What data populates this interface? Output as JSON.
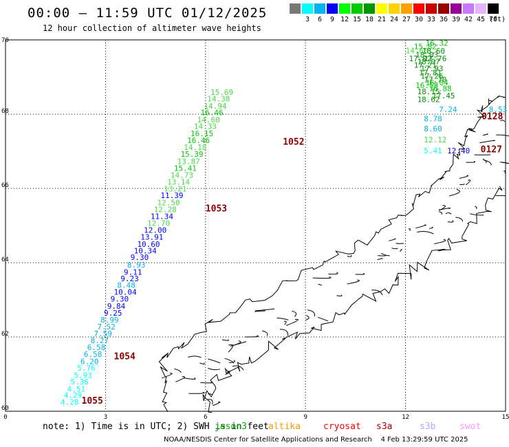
{
  "title": "00:00 – 11:59 UTC 01/12/2025",
  "subtitle": "12 hour collection of altimeter wave heights",
  "legend": {
    "unit": "(ft)",
    "bins": [
      {
        "label": "",
        "color": "#787878"
      },
      {
        "label": "3",
        "color": "#00ffff"
      },
      {
        "label": "6",
        "color": "#00b4f0"
      },
      {
        "label": "9",
        "color": "#0000ff"
      },
      {
        "label": "12",
        "color": "#00ff00"
      },
      {
        "label": "15",
        "color": "#00cc00"
      },
      {
        "label": "18",
        "color": "#009600"
      },
      {
        "label": "21",
        "color": "#ffff00"
      },
      {
        "label": "24",
        "color": "#ffd200"
      },
      {
        "label": "27",
        "color": "#ffa000"
      },
      {
        "label": "30",
        "color": "#ff0000"
      },
      {
        "label": "33",
        "color": "#c80000"
      },
      {
        "label": "36",
        "color": "#960000"
      },
      {
        "label": "39",
        "color": "#960096"
      },
      {
        "label": "42",
        "color": "#c878ff"
      },
      {
        "label": "45",
        "color": "#e6b4ff"
      },
      {
        "label": "70",
        "color": "#000000"
      }
    ]
  },
  "map": {
    "lon_range": [
      0,
      15
    ],
    "lat_range": [
      60,
      70
    ],
    "lon_ticks": [
      "0",
      "3",
      "6",
      "9",
      "12",
      "15"
    ],
    "lat_ticks": [
      "60",
      "62",
      "64",
      "66",
      "68",
      "70"
    ]
  },
  "track_main": [
    {
      "lon": 1.65,
      "lat": 60.18,
      "v": "4.28",
      "c": "#00ffff"
    },
    {
      "lon": 1.75,
      "lat": 60.36,
      "v": "4.29",
      "c": "#00ffff"
    },
    {
      "lon": 1.85,
      "lat": 60.53,
      "v": "4.51",
      "c": "#00ffff"
    },
    {
      "lon": 1.95,
      "lat": 60.72,
      "v": "5.36",
      "c": "#00ffff"
    },
    {
      "lon": 2.05,
      "lat": 60.9,
      "v": "5.93",
      "c": "#00ffff"
    },
    {
      "lon": 2.15,
      "lat": 61.09,
      "v": "5.76",
      "c": "#00ffff"
    },
    {
      "lon": 2.25,
      "lat": 61.27,
      "v": "6.20",
      "c": "#00b4f0"
    },
    {
      "lon": 2.35,
      "lat": 61.46,
      "v": "6.58",
      "c": "#00b4f0"
    },
    {
      "lon": 2.45,
      "lat": 61.65,
      "v": "6.58",
      "c": "#00b4f0"
    },
    {
      "lon": 2.55,
      "lat": 61.83,
      "v": "8.27",
      "c": "#00b4f0"
    },
    {
      "lon": 2.65,
      "lat": 62.02,
      "v": "7.59",
      "c": "#00b4f0"
    },
    {
      "lon": 2.75,
      "lat": 62.2,
      "v": "7.52",
      "c": "#00b4f0"
    },
    {
      "lon": 2.85,
      "lat": 62.39,
      "v": "8.99",
      "c": "#00b4f0"
    },
    {
      "lon": 2.95,
      "lat": 62.57,
      "v": "9.25",
      "c": "#0000ff"
    },
    {
      "lon": 3.05,
      "lat": 62.76,
      "v": "9.84",
      "c": "#0000ff"
    },
    {
      "lon": 3.15,
      "lat": 62.95,
      "v": "9.30",
      "c": "#0000ff"
    },
    {
      "lon": 3.25,
      "lat": 63.14,
      "v": "10.04",
      "c": "#0000ff"
    },
    {
      "lon": 3.35,
      "lat": 63.32,
      "v": "8.48",
      "c": "#00b4f0"
    },
    {
      "lon": 3.45,
      "lat": 63.5,
      "v": "9.23",
      "c": "#0000ff"
    },
    {
      "lon": 3.55,
      "lat": 63.68,
      "v": "9.11",
      "c": "#0000ff"
    },
    {
      "lon": 3.65,
      "lat": 63.87,
      "v": "8.93",
      "c": "#00b4f0"
    },
    {
      "lon": 3.75,
      "lat": 64.07,
      "v": "9.30",
      "c": "#0000ff"
    },
    {
      "lon": 3.85,
      "lat": 64.25,
      "v": "10.34",
      "c": "#0000ff"
    },
    {
      "lon": 3.95,
      "lat": 64.43,
      "v": "10.60",
      "c": "#0000ff"
    },
    {
      "lon": 4.05,
      "lat": 64.62,
      "v": "13.91",
      "c": "#0000ff"
    },
    {
      "lon": 4.15,
      "lat": 64.81,
      "v": "12.00",
      "c": "#0000ff"
    },
    {
      "lon": 4.25,
      "lat": 64.99,
      "v": "12.70",
      "c": "#44dd44"
    },
    {
      "lon": 4.35,
      "lat": 65.18,
      "v": "11.34",
      "c": "#0000ff"
    },
    {
      "lon": 4.45,
      "lat": 65.36,
      "v": "12.28",
      "c": "#44dd44"
    },
    {
      "lon": 4.55,
      "lat": 65.55,
      "v": "12.50",
      "c": "#44dd44"
    },
    {
      "lon": 4.65,
      "lat": 65.74,
      "v": "11.39",
      "c": "#0000ff"
    },
    {
      "lon": 4.75,
      "lat": 65.92,
      "v": "13.21",
      "c": "#44dd44"
    },
    {
      "lon": 4.85,
      "lat": 66.1,
      "v": "13.14",
      "c": "#44dd44"
    },
    {
      "lon": 4.95,
      "lat": 66.29,
      "v": "14.73",
      "c": "#44dd44"
    },
    {
      "lon": 5.05,
      "lat": 66.47,
      "v": "15.41",
      "c": "#00cc00"
    },
    {
      "lon": 5.15,
      "lat": 66.66,
      "v": "13.87",
      "c": "#44dd44"
    },
    {
      "lon": 5.25,
      "lat": 66.85,
      "v": "15.39",
      "c": "#00cc00"
    },
    {
      "lon": 5.35,
      "lat": 67.04,
      "v": "14.18",
      "c": "#44dd44"
    },
    {
      "lon": 5.45,
      "lat": 67.22,
      "v": "16.46",
      "c": "#00cc00"
    },
    {
      "lon": 5.55,
      "lat": 67.41,
      "v": "16.15",
      "c": "#00cc00"
    },
    {
      "lon": 5.65,
      "lat": 67.6,
      "v": "14.33",
      "c": "#44dd44"
    },
    {
      "lon": 5.75,
      "lat": 67.78,
      "v": "14.60",
      "c": "#44dd44"
    },
    {
      "lon": 5.85,
      "lat": 67.97,
      "v": "16.46",
      "c": "#00cc00"
    },
    {
      "lon": 5.95,
      "lat": 68.15,
      "v": "14.94",
      "c": "#44dd44"
    },
    {
      "lon": 6.05,
      "lat": 68.34,
      "v": "14.38",
      "c": "#44dd44"
    },
    {
      "lon": 6.15,
      "lat": 68.52,
      "v": "15.69",
      "c": "#44dd44"
    }
  ],
  "track_north": [
    {
      "lon": 12.0,
      "lat": 69.64,
      "v": "14.60",
      "c": "#44dd44"
    },
    {
      "lon": 12.25,
      "lat": 69.75,
      "v": "15.82",
      "c": "#00cc00"
    },
    {
      "lon": 12.6,
      "lat": 69.84,
      "v": "16.32",
      "c": "#00cc00"
    },
    {
      "lon": 12.5,
      "lat": 69.63,
      "v": "18.60",
      "c": "#009600"
    },
    {
      "lon": 12.3,
      "lat": 69.53,
      "v": "18.03",
      "c": "#009600"
    },
    {
      "lon": 12.1,
      "lat": 69.43,
      "v": "17.02",
      "c": "#009600"
    },
    {
      "lon": 12.55,
      "lat": 69.43,
      "v": "17.76",
      "c": "#009600"
    },
    {
      "lon": 12.35,
      "lat": 69.34,
      "v": "18.07",
      "c": "#009600"
    },
    {
      "lon": 12.25,
      "lat": 69.25,
      "v": "17.21",
      "c": "#009600"
    },
    {
      "lon": 12.45,
      "lat": 69.16,
      "v": "17.93",
      "c": "#009600"
    },
    {
      "lon": 12.4,
      "lat": 69.05,
      "v": "17.81",
      "c": "#009600"
    },
    {
      "lon": 12.45,
      "lat": 68.95,
      "v": "17.26",
      "c": "#009600"
    },
    {
      "lon": 12.55,
      "lat": 68.86,
      "v": "17.70",
      "c": "#009600"
    },
    {
      "lon": 12.6,
      "lat": 68.78,
      "v": "16.04",
      "c": "#00cc00"
    },
    {
      "lon": 12.3,
      "lat": 68.7,
      "v": "16.58",
      "c": "#00cc00"
    },
    {
      "lon": 12.7,
      "lat": 68.62,
      "v": "16.88",
      "c": "#00cc00"
    },
    {
      "lon": 12.35,
      "lat": 68.54,
      "v": "18.15",
      "c": "#009600"
    },
    {
      "lon": 12.8,
      "lat": 68.43,
      "v": "17.45",
      "c": "#009600"
    },
    {
      "lon": 12.35,
      "lat": 68.32,
      "v": "18.62",
      "c": "#009600"
    }
  ],
  "track_east": [
    {
      "lon": 13.0,
      "lat": 68.06,
      "v": "7.24",
      "c": "#00b4f0"
    },
    {
      "lon": 14.5,
      "lat": 68.06,
      "v": "8.53",
      "c": "#00b4f0"
    },
    {
      "lon": 12.55,
      "lat": 67.81,
      "v": "8.78",
      "c": "#00b4f0"
    },
    {
      "lon": 12.55,
      "lat": 67.54,
      "v": "8.60",
      "c": "#00b4f0"
    },
    {
      "lon": 12.55,
      "lat": 67.24,
      "v": "12.12",
      "c": "#44dd44"
    },
    {
      "lon": 12.55,
      "lat": 66.94,
      "v": "5.41",
      "c": "#00ffff"
    },
    {
      "lon": 13.25,
      "lat": 66.94,
      "v": "12.40",
      "c": "#0000ff"
    }
  ],
  "passes": [
    {
      "label": "1052",
      "lon": 8.32,
      "lat": 67.18
    },
    {
      "label": "1053",
      "lon": 6.0,
      "lat": 65.38
    },
    {
      "label": "1054",
      "lon": 3.25,
      "lat": 61.4
    },
    {
      "label": "1055",
      "lon": 2.28,
      "lat": 60.2
    },
    {
      "label": "0128",
      "lon": 14.28,
      "lat": 67.86
    },
    {
      "label": "0127",
      "lon": 14.25,
      "lat": 66.97
    }
  ],
  "note": "note: 1) Time is in UTC; 2) SWH is in feet",
  "satellites": [
    {
      "name": "jason3",
      "color": "#00aa00"
    },
    {
      "name": "altika",
      "color": "#ff9900"
    },
    {
      "name": "cryosat",
      "color": "#ff0000"
    },
    {
      "name": "s3a",
      "color": "#aa0000"
    },
    {
      "name": "s3b",
      "color": "#aaaaff"
    },
    {
      "name": "swot",
      "color": "#ff99ff"
    }
  ],
  "credit": "NOAA/NESDIS Center for Satellite Applications and Research    4 Feb 13:29:59 UTC 2025"
}
